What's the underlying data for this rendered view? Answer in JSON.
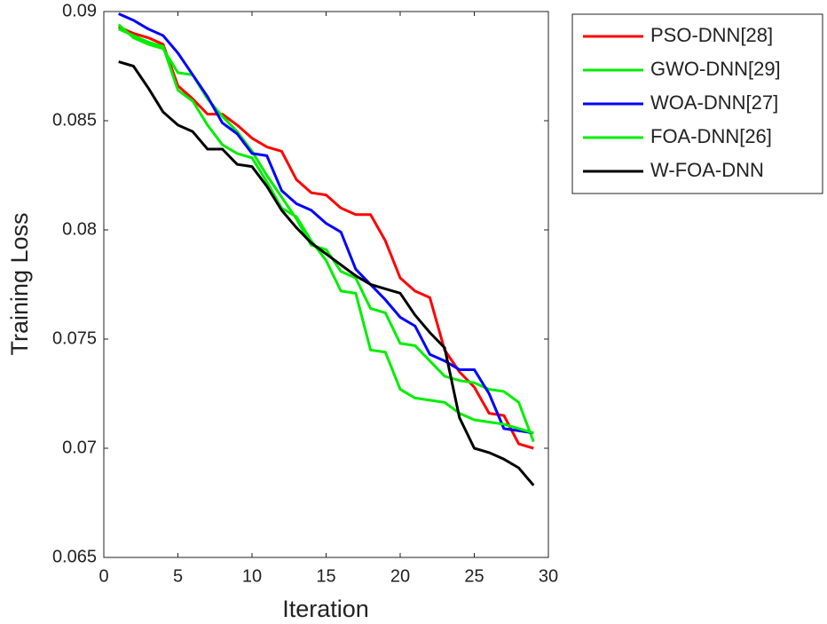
{
  "chart_data": {
    "type": "line",
    "x_label": "Iteration",
    "y_label": "Training Loss",
    "x": [
      1,
      2,
      3,
      4,
      5,
      6,
      7,
      8,
      9,
      10,
      11,
      12,
      13,
      14,
      15,
      16,
      17,
      18,
      19,
      20,
      21,
      22,
      23,
      24,
      25,
      26,
      27,
      28,
      29
    ],
    "series": [
      {
        "name": "PSO-DNN[28]",
        "color": "#ff0000",
        "values": [
          0.0893,
          0.089,
          0.0888,
          0.0885,
          0.0866,
          0.086,
          0.0853,
          0.0853,
          0.0848,
          0.0842,
          0.0838,
          0.0836,
          0.0823,
          0.0817,
          0.0816,
          0.081,
          0.0807,
          0.0807,
          0.0795,
          0.0778,
          0.0772,
          0.0769,
          0.0745,
          0.0735,
          0.0728,
          0.0716,
          0.0715,
          0.0702,
          0.07
        ]
      },
      {
        "name": "GWO-DNN[29]",
        "color": "#00ee00",
        "values": [
          0.0894,
          0.0888,
          0.0885,
          0.0883,
          0.0872,
          0.0871,
          0.086,
          0.0852,
          0.0845,
          0.0836,
          0.0825,
          0.0815,
          0.0805,
          0.0793,
          0.0791,
          0.0781,
          0.0778,
          0.0764,
          0.0762,
          0.0748,
          0.0747,
          0.074,
          0.0733,
          0.0731,
          0.073,
          0.0727,
          0.0726,
          0.0721,
          0.0703
        ]
      },
      {
        "name": "WOA-DNN[27]",
        "color": "#0000ff",
        "values": [
          0.0899,
          0.0896,
          0.0892,
          0.0889,
          0.0881,
          0.0871,
          0.0861,
          0.0849,
          0.0844,
          0.0835,
          0.0834,
          0.0818,
          0.0812,
          0.0809,
          0.0803,
          0.0799,
          0.0782,
          0.0775,
          0.0768,
          0.076,
          0.0756,
          0.0743,
          0.074,
          0.0736,
          0.0736,
          0.0725,
          0.0709,
          0.0708,
          0.0707
        ]
      },
      {
        "name": "FOA-DNN[26]",
        "color": "#00ee00",
        "values": [
          0.0892,
          0.0889,
          0.0886,
          0.0884,
          0.0864,
          0.0859,
          0.0848,
          0.0839,
          0.0835,
          0.0833,
          0.0822,
          0.081,
          0.0806,
          0.0795,
          0.0786,
          0.0772,
          0.0771,
          0.0745,
          0.0744,
          0.0727,
          0.0723,
          0.0722,
          0.0721,
          0.0716,
          0.0713,
          0.0712,
          0.0711,
          0.0709,
          0.0707
        ]
      },
      {
        "name": "W-FOA-DNN",
        "color": "#000000",
        "values": [
          0.0877,
          0.0875,
          0.0865,
          0.0854,
          0.0848,
          0.0845,
          0.0837,
          0.0837,
          0.083,
          0.0829,
          0.082,
          0.0809,
          0.0801,
          0.0794,
          0.0789,
          0.0784,
          0.0779,
          0.0775,
          0.0773,
          0.0771,
          0.0761,
          0.0753,
          0.0746,
          0.0714,
          0.07,
          0.0698,
          0.0695,
          0.0691,
          0.0683
        ]
      }
    ],
    "xlim": [
      0,
      30
    ],
    "xticks": [
      0,
      5,
      10,
      15,
      20,
      25,
      30
    ],
    "ylim": [
      0.065,
      0.09
    ],
    "yticks": [
      0.065,
      0.07,
      0.075,
      0.08,
      0.085,
      0.09
    ]
  }
}
